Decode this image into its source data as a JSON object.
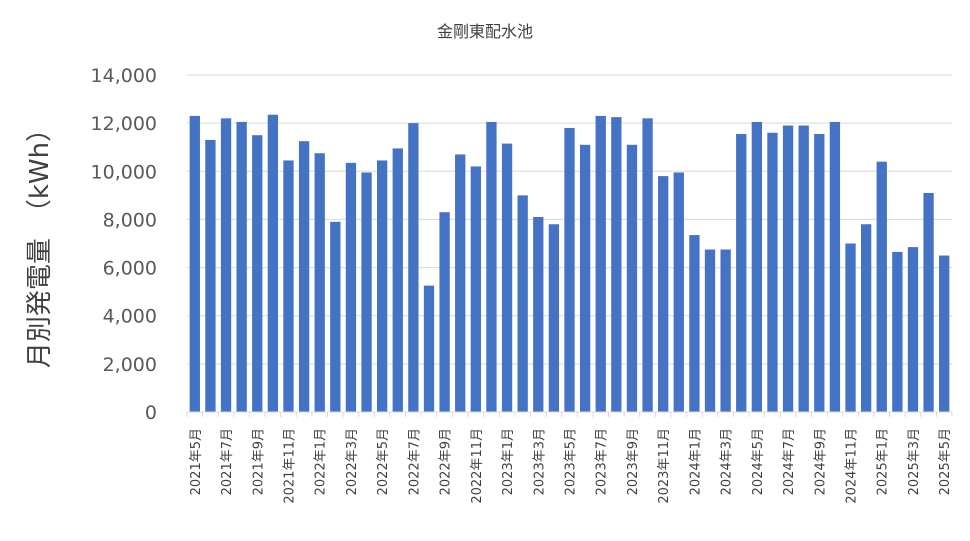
{
  "chart_data": {
    "type": "bar",
    "title": "金剛東配水池",
    "ylabel": "月別発電量　（kWh）",
    "xlabel": "",
    "ylim": [
      0,
      14000
    ],
    "yticks": [
      0,
      2000,
      4000,
      6000,
      8000,
      10000,
      12000,
      14000
    ],
    "ytick_labels": [
      "0",
      "2,000",
      "4,000",
      "6,000",
      "8,000",
      "10,000",
      "12,000",
      "14,000"
    ],
    "grid": true,
    "legend": "none",
    "bar_color": "#4472C4",
    "categories": [
      "2021年5月",
      "2021年6月",
      "2021年7月",
      "2021年8月",
      "2021年9月",
      "2021年10月",
      "2021年11月",
      "2021年12月",
      "2022年1月",
      "2022年2月",
      "2022年3月",
      "2022年4月",
      "2022年5月",
      "2022年6月",
      "2022年7月",
      "2022年8月",
      "2022年9月",
      "2022年10月",
      "2022年11月",
      "2022年12月",
      "2023年1月",
      "2023年2月",
      "2023年3月",
      "2023年4月",
      "2023年5月",
      "2023年6月",
      "2023年7月",
      "2023年8月",
      "2023年9月",
      "2023年10月",
      "2023年11月",
      "2023年12月",
      "2024年1月",
      "2024年2月",
      "2024年3月",
      "2024年4月",
      "2024年5月",
      "2024年6月",
      "2024年7月",
      "2024年8月",
      "2024年9月",
      "2024年10月",
      "2024年11月",
      "2024年12月",
      "2025年1月",
      "2025年2月",
      "2025年3月",
      "2025年4月",
      "2025年5月"
    ],
    "visible_tick_labels": [
      "2021年5月",
      "2021年7月",
      "2021年9月",
      "2021年11月",
      "2022年1月",
      "2022年3月",
      "2022年5月",
      "2022年7月",
      "2022年9月",
      "2022年11月",
      "2023年1月",
      "2023年3月",
      "2023年5月",
      "2023年7月",
      "2023年9月",
      "2023年11月",
      "2024年1月",
      "2024年3月",
      "2024年5月",
      "2024年7月",
      "2024年9月",
      "2024年11月",
      "2025年1月",
      "2025年3月",
      "2025年5月"
    ],
    "values": [
      12300,
      11300,
      12200,
      12050,
      11500,
      12350,
      10450,
      11250,
      10750,
      7900,
      10350,
      9950,
      10450,
      10950,
      12000,
      5250,
      8300,
      10700,
      10200,
      12050,
      11150,
      9000,
      8100,
      7800,
      11800,
      11100,
      12300,
      12250,
      11100,
      12200,
      9800,
      9950,
      7350,
      6750,
      6750,
      11550,
      12050,
      11600,
      11900,
      11900,
      11550,
      12050,
      7000,
      7800,
      10400,
      6650,
      6850,
      9100,
      6500
    ]
  }
}
